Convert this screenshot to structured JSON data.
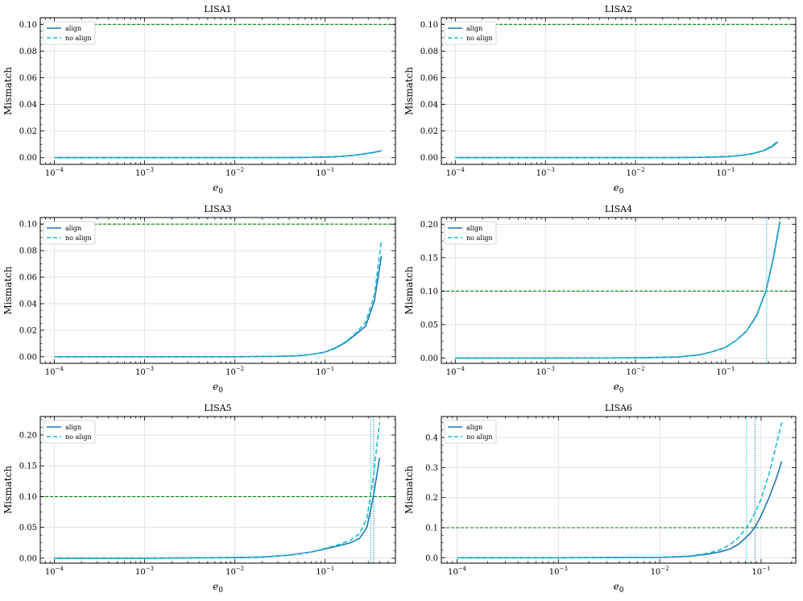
{
  "colors": {
    "align": "#1f77b4",
    "no_align": "#17becf",
    "threshold": "#008000",
    "grid": "#dddddd"
  },
  "chart_data": [
    {
      "type": "line",
      "title": "LISA1",
      "xlabel": "e_0",
      "ylabel": "Mismatch",
      "xscale": "log",
      "xlim": [
        7e-05,
        0.6
      ],
      "ylim": [
        -0.005,
        0.105
      ],
      "yticks": [
        0.0,
        0.02,
        0.04,
        0.06,
        0.08,
        0.1
      ],
      "ytick_labels": [
        "0.00",
        "0.02",
        "0.04",
        "0.06",
        "0.08",
        "0.10"
      ],
      "threshold": 0.1,
      "vlines": [],
      "grid": true,
      "legend": "top-left",
      "series": [
        {
          "name": "align",
          "style": "solid",
          "x": [
            0.0001,
            0.001,
            0.01,
            0.03,
            0.06,
            0.1,
            0.15,
            0.2,
            0.27,
            0.35,
            0.42
          ],
          "y": [
            0,
            0,
            0,
            0.0001,
            0.0002,
            0.0005,
            0.001,
            0.0017,
            0.0028,
            0.004,
            0.0052
          ]
        },
        {
          "name": "no align",
          "style": "dashed",
          "x": [
            0.0001,
            0.001,
            0.01,
            0.03,
            0.06,
            0.1,
            0.15,
            0.2,
            0.27,
            0.35,
            0.42
          ],
          "y": [
            0,
            0,
            0,
            0.0001,
            0.0002,
            0.0005,
            0.001,
            0.0017,
            0.0029,
            0.0042,
            0.0054
          ]
        }
      ]
    },
    {
      "type": "line",
      "title": "LISA2",
      "xlabel": "e_0",
      "ylabel": "Mismatch",
      "xscale": "log",
      "xlim": [
        7e-05,
        0.6
      ],
      "ylim": [
        -0.005,
        0.105
      ],
      "yticks": [
        0.0,
        0.02,
        0.04,
        0.06,
        0.08,
        0.1
      ],
      "ytick_labels": [
        "0.00",
        "0.02",
        "0.04",
        "0.06",
        "0.08",
        "0.10"
      ],
      "threshold": 0.1,
      "vlines": [],
      "grid": true,
      "legend": "top-left",
      "series": [
        {
          "name": "align",
          "style": "solid",
          "x": [
            0.0001,
            0.001,
            0.01,
            0.03,
            0.06,
            0.1,
            0.15,
            0.2,
            0.27,
            0.33,
            0.38
          ],
          "y": [
            0,
            0,
            0,
            0.0001,
            0.0003,
            0.0008,
            0.0017,
            0.003,
            0.0055,
            0.0085,
            0.0118
          ]
        },
        {
          "name": "no align",
          "style": "dashed",
          "x": [
            0.0001,
            0.001,
            0.01,
            0.03,
            0.06,
            0.1,
            0.15,
            0.2,
            0.27,
            0.33,
            0.38
          ],
          "y": [
            0,
            0,
            0,
            0.0001,
            0.0003,
            0.0008,
            0.0017,
            0.0031,
            0.0057,
            0.0092,
            0.0125
          ]
        }
      ]
    },
    {
      "type": "line",
      "title": "LISA3",
      "xlabel": "e_0",
      "ylabel": "Mismatch",
      "xscale": "log",
      "xlim": [
        7e-05,
        0.6
      ],
      "ylim": [
        -0.005,
        0.105
      ],
      "yticks": [
        0.0,
        0.02,
        0.04,
        0.06,
        0.08,
        0.1
      ],
      "ytick_labels": [
        "0.00",
        "0.02",
        "0.04",
        "0.06",
        "0.08",
        "0.10"
      ],
      "threshold": 0.1,
      "vlines": [],
      "grid": true,
      "legend": "top-left",
      "series": [
        {
          "name": "align",
          "style": "solid",
          "x": [
            0.0001,
            0.001,
            0.01,
            0.03,
            0.05,
            0.07,
            0.1,
            0.13,
            0.17,
            0.22,
            0.28,
            0.35,
            0.42
          ],
          "y": [
            0,
            0,
            0,
            0.0003,
            0.0008,
            0.0017,
            0.0035,
            0.0065,
            0.011,
            0.017,
            0.023,
            0.042,
            0.076
          ]
        },
        {
          "name": "no align",
          "style": "dashed",
          "x": [
            0.0001,
            0.001,
            0.01,
            0.03,
            0.05,
            0.07,
            0.1,
            0.13,
            0.17,
            0.22,
            0.28,
            0.35,
            0.42
          ],
          "y": [
            0,
            0,
            0,
            0.0003,
            0.0008,
            0.0017,
            0.0036,
            0.0068,
            0.0115,
            0.018,
            0.026,
            0.046,
            0.088
          ]
        }
      ]
    },
    {
      "type": "line",
      "title": "LISA4",
      "xlabel": "e_0",
      "ylabel": "Mismatch",
      "xscale": "log",
      "xlim": [
        7e-05,
        0.6
      ],
      "ylim": [
        -0.008,
        0.21
      ],
      "yticks": [
        0.0,
        0.05,
        0.1,
        0.15,
        0.2
      ],
      "ytick_labels": [
        "0.00",
        "0.05",
        "0.10",
        "0.15",
        "0.20"
      ],
      "threshold": 0.1,
      "grid": true,
      "legend": "top-left",
      "vlines": [
        {
          "x": 0.285,
          "series": "no align"
        }
      ],
      "series": [
        {
          "name": "align",
          "style": "solid",
          "x": [
            0.0001,
            0.001,
            0.01,
            0.03,
            0.05,
            0.07,
            0.1,
            0.13,
            0.17,
            0.22,
            0.28,
            0.34,
            0.4
          ],
          "y": [
            0,
            0,
            0.0002,
            0.0015,
            0.0045,
            0.009,
            0.016,
            0.026,
            0.04,
            0.063,
            0.1,
            0.15,
            0.203
          ]
        },
        {
          "name": "no align",
          "style": "dashed",
          "x": [
            0.0001,
            0.001,
            0.01,
            0.03,
            0.05,
            0.07,
            0.1,
            0.13,
            0.17,
            0.22,
            0.28,
            0.34,
            0.4
          ],
          "y": [
            0,
            0,
            0.0002,
            0.0015,
            0.0045,
            0.009,
            0.016,
            0.026,
            0.04,
            0.064,
            0.101,
            0.152,
            0.205
          ]
        }
      ]
    },
    {
      "type": "line",
      "title": "LISA5",
      "xlabel": "e_0",
      "ylabel": "Mismatch",
      "xscale": "log",
      "xlim": [
        7e-05,
        0.6
      ],
      "ylim": [
        -0.008,
        0.23
      ],
      "yticks": [
        0.0,
        0.05,
        0.1,
        0.15,
        0.2
      ],
      "ytick_labels": [
        "0.00",
        "0.05",
        "0.10",
        "0.15",
        "0.20"
      ],
      "threshold": 0.1,
      "grid": true,
      "legend": "top-left",
      "vlines": [
        {
          "x": 0.32,
          "series": "no align"
        },
        {
          "x": 0.345,
          "series": "align"
        }
      ],
      "series": [
        {
          "name": "align",
          "style": "solid",
          "x": [
            0.0001,
            0.001,
            0.01,
            0.02,
            0.04,
            0.07,
            0.1,
            0.14,
            0.19,
            0.24,
            0.29,
            0.34,
            0.4
          ],
          "y": [
            0,
            0,
            0.001,
            0.002,
            0.005,
            0.01,
            0.015,
            0.02,
            0.025,
            0.032,
            0.05,
            0.098,
            0.163
          ]
        },
        {
          "name": "no align",
          "style": "dashed",
          "x": [
            0.0001,
            0.001,
            0.01,
            0.02,
            0.04,
            0.07,
            0.1,
            0.14,
            0.19,
            0.24,
            0.29,
            0.34,
            0.4
          ],
          "y": [
            0,
            0,
            0.001,
            0.002,
            0.005,
            0.01,
            0.016,
            0.022,
            0.029,
            0.04,
            0.065,
            0.13,
            0.22
          ]
        }
      ]
    },
    {
      "type": "line",
      "title": "LISA6",
      "xlabel": "e_0",
      "ylabel": "Mismatch",
      "xscale": "log",
      "xlim": [
        7e-05,
        0.22
      ],
      "ylim": [
        -0.018,
        0.47
      ],
      "yticks": [
        0.0,
        0.1,
        0.2,
        0.3,
        0.4
      ],
      "ytick_labels": [
        "0.0",
        "0.1",
        "0.2",
        "0.3",
        "0.4"
      ],
      "threshold": 0.1,
      "grid": true,
      "legend": "top-left",
      "vlines": [
        {
          "x": 0.072,
          "series": "no align"
        },
        {
          "x": 0.087,
          "series": "align"
        }
      ],
      "series": [
        {
          "name": "align",
          "style": "solid",
          "x": [
            0.0001,
            0.001,
            0.01,
            0.02,
            0.03,
            0.04,
            0.05,
            0.06,
            0.07,
            0.08,
            0.09,
            0.1,
            0.12,
            0.14,
            0.16
          ],
          "y": [
            0,
            0,
            0.001,
            0.005,
            0.012,
            0.02,
            0.03,
            0.045,
            0.065,
            0.085,
            0.11,
            0.14,
            0.2,
            0.26,
            0.32
          ]
        },
        {
          "name": "no align",
          "style": "dashed",
          "x": [
            0.0001,
            0.001,
            0.01,
            0.02,
            0.03,
            0.04,
            0.05,
            0.06,
            0.07,
            0.08,
            0.09,
            0.1,
            0.12,
            0.14,
            0.16
          ],
          "y": [
            0,
            0,
            0.001,
            0.006,
            0.015,
            0.027,
            0.045,
            0.067,
            0.095,
            0.125,
            0.16,
            0.195,
            0.28,
            0.37,
            0.45
          ]
        }
      ]
    }
  ]
}
